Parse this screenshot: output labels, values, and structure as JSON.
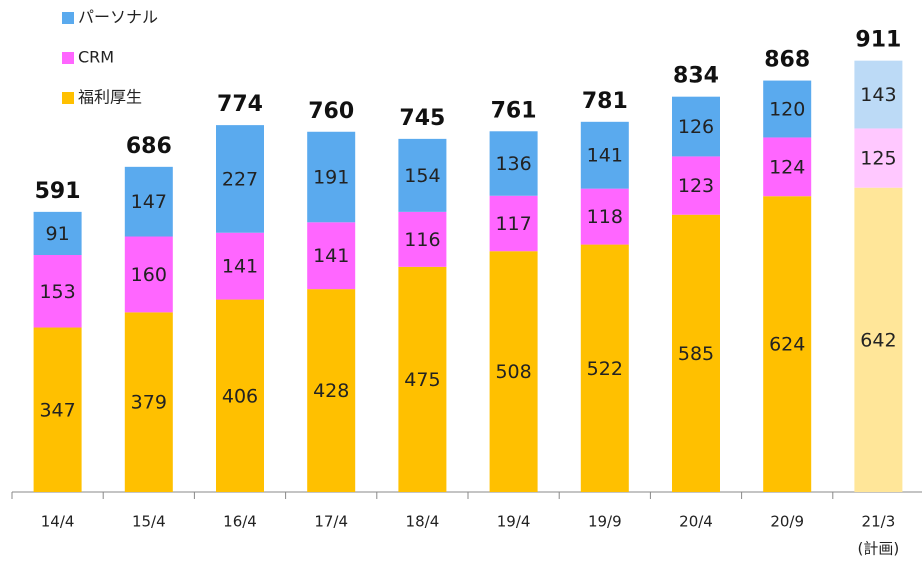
{
  "chart_data": {
    "type": "stacked_bar",
    "categories": [
      "14/4",
      "15/4",
      "16/4",
      "17/4",
      "18/4",
      "19/4",
      "19/9",
      "20/4",
      "20/9",
      "21/3"
    ],
    "plan_note": "(計画)",
    "series": [
      {
        "name": "福利厚生",
        "color": "#ffc000",
        "plan_color": "#ffe699",
        "values": [
          347,
          379,
          406,
          428,
          475,
          508,
          522,
          585,
          624,
          642
        ]
      },
      {
        "name": "CRM",
        "color": "#ff66ff",
        "plan_color": "#ffc8ff",
        "values": [
          153,
          160,
          141,
          141,
          116,
          117,
          118,
          123,
          124,
          125
        ]
      },
      {
        "name": "パーソナル",
        "color": "#5aaaee",
        "plan_color": "#bcdaf6",
        "values": [
          91,
          147,
          227,
          191,
          154,
          136,
          141,
          126,
          120,
          143
        ]
      }
    ],
    "totals": [
      591,
      686,
      774,
      760,
      745,
      761,
      781,
      834,
      868,
      911
    ],
    "ylim": [
      0,
      1000
    ]
  }
}
